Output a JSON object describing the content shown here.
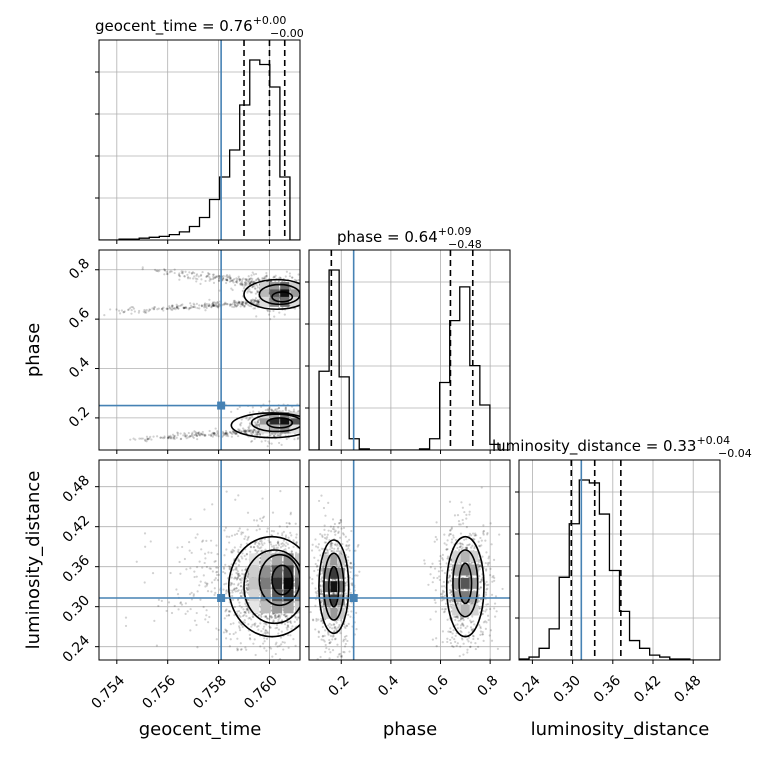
{
  "chart_data": {
    "type": "corner",
    "parameters": [
      "geocent_time",
      "phase",
      "luminosity_distance"
    ],
    "truths": {
      "geocent_time": 0.7581,
      "phase": 0.25,
      "luminosity_distance": 0.313
    },
    "truth_color": "#4682b4",
    "titles": [
      {
        "label": "geocent_time = 0.76",
        "plus": "+0.00",
        "minus": "−0.00"
      },
      {
        "label": "phase = 0.64",
        "plus": "+0.09",
        "minus": "−0.48"
      },
      {
        "label": "luminosity_distance = 0.33",
        "plus": "+0.04",
        "minus": "−0.04"
      }
    ],
    "ranges": {
      "geocent_time": [
        0.7533,
        0.7612
      ],
      "phase": [
        0.07,
        0.88
      ],
      "luminosity_distance": [
        0.22,
        0.52
      ]
    },
    "ticks": {
      "geocent_time": [
        "0.754",
        "0.756",
        "0.758",
        "0.760"
      ],
      "phase": [
        "0.2",
        "0.4",
        "0.6",
        "0.8"
      ],
      "luminosity_distance": [
        "0.24",
        "0.30",
        "0.36",
        "0.42",
        "0.48"
      ]
    },
    "quantiles": {
      "geocent_time": [
        0.759,
        0.76,
        0.7606
      ],
      "phase": [
        0.16,
        0.64,
        0.73
      ],
      "luminosity_distance": [
        0.298,
        0.333,
        0.372
      ]
    },
    "hist1d": {
      "geocent_time": {
        "edges_start": 0.7533,
        "bin_width": 0.000395,
        "counts": [
          0,
          0,
          1,
          1,
          2,
          3,
          4,
          6,
          9,
          15,
          25,
          45,
          70,
          100,
          150,
          200,
          195,
          170,
          70,
          0
        ]
      },
      "phase": {
        "edges_start": 0.07,
        "bin_width": 0.0405,
        "counts": [
          0,
          70,
          160,
          65,
          10,
          1,
          0,
          0,
          0,
          0,
          0,
          1,
          10,
          60,
          115,
          145,
          75,
          40,
          5,
          0
        ]
      },
      "luminosity_distance": {
        "edges_start": 0.22,
        "bin_width": 0.015,
        "counts": [
          1,
          3,
          12,
          32,
          85,
          140,
          185,
          182,
          150,
          92,
          50,
          20,
          12,
          5,
          3,
          1,
          1,
          0,
          0,
          0
        ]
      }
    },
    "grid": true
  }
}
